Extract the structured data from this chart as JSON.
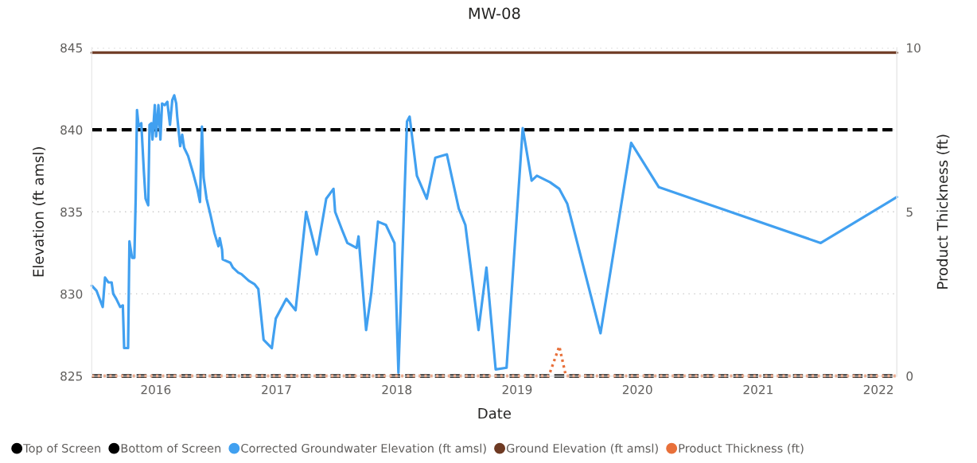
{
  "chart_data": {
    "type": "line",
    "title": "MW-08",
    "xlabel": "Date",
    "ylabel": "Elevation (ft amsl)",
    "y2label": "Product Thickness (ft)",
    "xlim": [
      "2015-06-21",
      "2022-02-26"
    ],
    "xticks": [
      "2016",
      "2017",
      "2018",
      "2019",
      "2020",
      "2021",
      "2022"
    ],
    "ylim": [
      825,
      845
    ],
    "yticks": [
      825,
      830,
      835,
      840,
      845
    ],
    "y2lim": [
      0,
      10
    ],
    "y2ticks": [
      0,
      5,
      10
    ],
    "grid": "y",
    "legend": "bottom",
    "series": [
      {
        "name": "Top of Screen",
        "color": "#000000",
        "line_style": "dashed",
        "x": [
          "2015-06-21",
          "2022-02-26"
        ],
        "values": [
          840,
          840
        ]
      },
      {
        "name": "Bottom of Screen",
        "color": "#000000",
        "line_style": "dashed",
        "x": [
          "2015-06-21",
          "2022-02-26"
        ],
        "values": [
          825,
          825
        ]
      },
      {
        "name": "Corrected Groundwater Elevation (ft amsl)",
        "color": "#41a0f0",
        "line_style": "solid",
        "x": [
          "2015-06-21",
          "2015-07-05",
          "2015-07-24",
          "2015-07-31",
          "2015-08-10",
          "2015-08-20",
          "2015-08-25",
          "2015-09-03",
          "2015-09-15",
          "2015-09-23",
          "2015-09-27",
          "2015-10-09",
          "2015-10-13",
          "2015-10-21",
          "2015-10-28",
          "2015-11-01",
          "2015-11-05",
          "2015-11-10",
          "2015-11-18",
          "2015-11-26",
          "2015-12-01",
          "2015-12-09",
          "2015-12-13",
          "2015-12-19",
          "2015-12-22",
          "2015-12-29",
          "2016-01-02",
          "2016-01-09",
          "2016-01-15",
          "2016-01-20",
          "2016-01-28",
          "2016-02-05",
          "2016-02-13",
          "2016-02-20",
          "2016-02-26",
          "2016-03-03",
          "2016-03-06",
          "2016-03-15",
          "2016-03-21",
          "2016-03-27",
          "2016-04-08",
          "2016-04-24",
          "2016-05-06",
          "2016-05-14",
          "2016-05-20",
          "2016-05-25",
          "2016-06-03",
          "2016-06-15",
          "2016-06-27",
          "2016-07-09",
          "2016-07-13",
          "2016-07-20",
          "2016-07-22",
          "2016-08-14",
          "2016-08-22",
          "2016-09-07",
          "2016-09-17",
          "2016-10-09",
          "2016-10-26",
          "2016-11-07",
          "2016-11-23",
          "2016-12-18",
          "2016-12-30",
          "2017-01-31",
          "2017-02-28",
          "2017-04-01",
          "2017-05-03",
          "2017-06-01",
          "2017-06-23",
          "2017-06-28",
          "2017-07-19",
          "2017-08-04",
          "2017-09-01",
          "2017-09-07",
          "2017-09-30",
          "2017-10-16",
          "2017-11-05",
          "2017-11-29",
          "2017-12-25",
          "2018-01-06",
          "2018-02-01",
          "2018-02-09",
          "2018-03-03",
          "2018-04-02",
          "2018-04-28",
          "2018-06-02",
          "2018-07-08",
          "2018-07-28",
          "2018-09-06",
          "2018-09-30",
          "2018-10-28",
          "2018-11-30",
          "2019-01-18",
          "2019-02-14",
          "2019-03-02",
          "2019-04-11",
          "2019-05-09",
          "2019-06-02",
          "2019-09-11",
          "2019-12-13",
          "2020-03-06",
          "2021-07-10",
          "2022-02-26"
        ],
        "values": [
          830.5,
          830.2,
          829.2,
          831.0,
          830.7,
          830.7,
          830.0,
          829.7,
          829.2,
          829.3,
          826.7,
          826.7,
          833.2,
          832.2,
          832.2,
          835.8,
          841.2,
          840.2,
          840.4,
          837.4,
          835.8,
          835.4,
          840.3,
          840.4,
          839.4,
          841.5,
          839.6,
          841.5,
          839.4,
          841.6,
          841.5,
          841.7,
          840.3,
          841.8,
          842.1,
          841.6,
          840.8,
          839.0,
          839.7,
          838.9,
          838.4,
          837.3,
          836.4,
          835.6,
          840.2,
          837.1,
          835.8,
          834.8,
          833.7,
          832.9,
          833.4,
          832.7,
          832.1,
          831.9,
          831.6,
          831.3,
          831.2,
          830.8,
          830.6,
          830.3,
          827.2,
          826.7,
          828.5,
          829.7,
          829.0,
          835.0,
          832.4,
          835.8,
          836.4,
          835.0,
          833.9,
          833.1,
          832.8,
          833.5,
          827.8,
          830.1,
          834.4,
          834.2,
          833.1,
          825.2,
          840.5,
          840.8,
          837.2,
          835.8,
          838.3,
          838.5,
          835.2,
          834.2,
          827.8,
          831.6,
          825.4,
          825.5,
          840.1,
          836.9,
          837.2,
          836.8,
          836.4,
          835.5,
          827.6,
          839.2,
          836.5,
          833.1,
          835.9
        ]
      },
      {
        "name": "Ground Elevation (ft amsl)",
        "color": "#6e3a23",
        "line_style": "solid",
        "x": [
          "2015-06-21",
          "2022-02-26"
        ],
        "values": [
          844.7,
          844.7
        ]
      },
      {
        "name": "Product Thickness (ft)",
        "color": "#e8703a",
        "line_style": "dotted",
        "axis": "y2",
        "x": [
          "2015-06-21",
          "2019-04-07",
          "2019-05-09",
          "2019-05-29",
          "2022-02-26"
        ],
        "values": [
          0,
          0,
          0.9,
          0,
          0
        ]
      }
    ]
  }
}
